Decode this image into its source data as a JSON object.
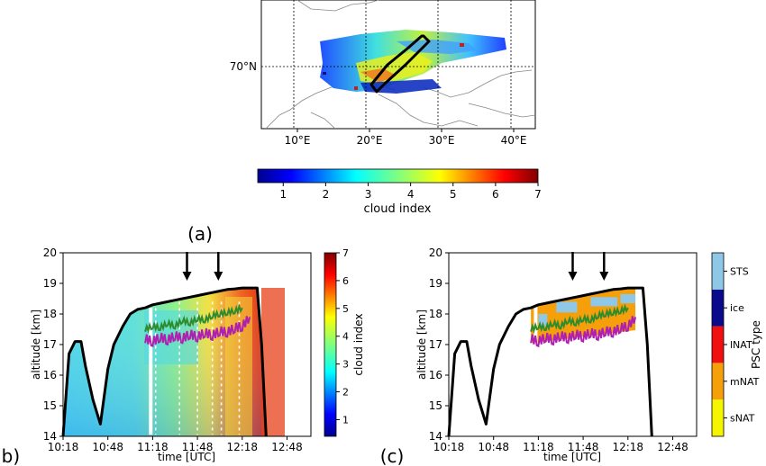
{
  "panel_labels": {
    "a": "(a)",
    "b": "(b)",
    "c": "(c)"
  },
  "map": {
    "lon_ticks": [
      "10°E",
      "20°E",
      "30°E",
      "40°E"
    ],
    "lat_label": "70°N",
    "lon_range": [
      5,
      43
    ],
    "lat_range": [
      64,
      77
    ]
  },
  "colorbar_main": {
    "label": "cloud index",
    "ticks": [
      "1",
      "2",
      "3",
      "4",
      "5",
      "6",
      "7"
    ],
    "range": [
      0.4,
      7
    ]
  },
  "chart_data": [
    {
      "id": "b",
      "type": "heatmap",
      "xlabel": "time [UTC]",
      "ylabel": "altitude [km]",
      "x_ticks": [
        "10:18",
        "10:48",
        "11:18",
        "11:48",
        "12:18",
        "12:48"
      ],
      "y_ticks": [
        "14",
        "15",
        "16",
        "17",
        "18",
        "19",
        "20"
      ],
      "ylim": [
        14,
        20
      ],
      "xlim": [
        "10:18",
        "13:04"
      ],
      "colorbar": {
        "label": "cloud index",
        "ticks": [
          "1",
          "2",
          "3",
          "4",
          "5",
          "6",
          "7"
        ],
        "range": [
          0.4,
          7
        ]
      },
      "arrows_at": [
        "11:41",
        "12:02"
      ],
      "flight_altitude": {
        "t_min": [
          0,
          4,
          8,
          12,
          15,
          20,
          25,
          30,
          34,
          40,
          45,
          50,
          55,
          60,
          65,
          70,
          75,
          80,
          85,
          90,
          95,
          100,
          105,
          110,
          115,
          120,
          125,
          130,
          133,
          136
        ],
        "km": [
          14,
          16.7,
          17.1,
          17.1,
          16.3,
          15.2,
          14.4,
          16.2,
          17.0,
          17.6,
          18.0,
          18.15,
          18.2,
          18.3,
          18.35,
          18.4,
          18.45,
          18.5,
          18.55,
          18.6,
          18.65,
          18.7,
          18.75,
          18.8,
          18.82,
          18.85,
          18.85,
          18.85,
          17.0,
          14
        ]
      },
      "line_green": {
        "t_min": [
          55,
          60,
          65,
          70,
          75,
          80,
          85,
          90,
          95,
          100,
          105,
          110,
          115,
          120
        ],
        "km": [
          17.5,
          17.6,
          17.55,
          17.7,
          17.6,
          17.8,
          17.7,
          17.85,
          17.8,
          17.95,
          18.0,
          18.05,
          18.1,
          18.2
        ]
      },
      "line_magenta": {
        "t_min": [
          55,
          60,
          65,
          70,
          75,
          80,
          85,
          90,
          95,
          100,
          105,
          110,
          115,
          120,
          125
        ],
        "km": [
          17.2,
          17.1,
          17.25,
          17.15,
          17.3,
          17.2,
          17.35,
          17.25,
          17.4,
          17.3,
          17.45,
          17.4,
          17.55,
          17.6,
          17.9
        ]
      }
    },
    {
      "id": "c",
      "type": "heatmap",
      "xlabel": "time [UTC]",
      "ylabel": "altitude [km]",
      "x_ticks": [
        "10:18",
        "10:48",
        "11:18",
        "11:48",
        "12:18",
        "12:48"
      ],
      "y_ticks": [
        "14",
        "15",
        "16",
        "17",
        "18",
        "19",
        "20"
      ],
      "ylim": [
        14,
        20
      ],
      "xlim": [
        "10:18",
        "13:04"
      ],
      "arrows_at": [
        "11:41",
        "12:02"
      ],
      "legend": {
        "label": "PSC type",
        "categories": [
          {
            "name": "sNAT",
            "color": "#f5f500"
          },
          {
            "name": "mNAT",
            "color": "#f5a00a"
          },
          {
            "name": "lNAT",
            "color": "#f01010"
          },
          {
            "name": "ice",
            "color": "#0a0a8c"
          },
          {
            "name": "STS",
            "color": "#8ec8e6"
          }
        ]
      },
      "psc_region": {
        "t_start_min": 55,
        "t_end_min": 126
      }
    }
  ]
}
